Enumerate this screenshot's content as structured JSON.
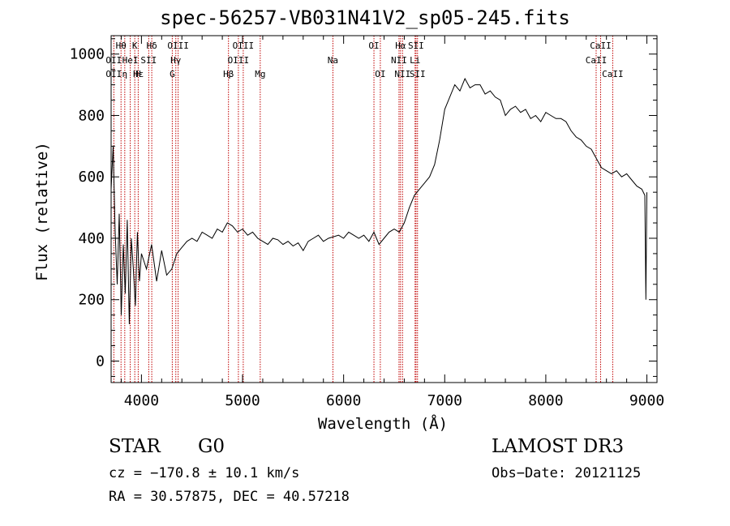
{
  "chart_data": {
    "type": "line",
    "title": "spec-56257-VB031N41V2_sp05-245.fits",
    "xlabel": "Wavelength (Å)",
    "ylabel": "Flux (relative)",
    "xlim": [
      3700,
      9100
    ],
    "ylim": [
      -70,
      1060
    ],
    "xticks": [
      4000,
      5000,
      6000,
      7000,
      8000,
      9000
    ],
    "yticks": [
      0,
      200,
      400,
      600,
      800,
      1000
    ],
    "grid": false,
    "series": [
      {
        "x": [
          3700,
          3720,
          3740,
          3760,
          3780,
          3800,
          3820,
          3840,
          3860,
          3880,
          3900,
          3920,
          3940,
          3960,
          3980,
          4000,
          4050,
          4100,
          4150,
          4200,
          4250,
          4300,
          4350,
          4400,
          4450,
          4500,
          4550,
          4600,
          4650,
          4700,
          4750,
          4800,
          4850,
          4900,
          4950,
          5000,
          5050,
          5100,
          5150,
          5200,
          5250,
          5300,
          5350,
          5400,
          5450,
          5500,
          5550,
          5600,
          5650,
          5700,
          5750,
          5800,
          5850,
          5900,
          5950,
          6000,
          6050,
          6100,
          6150,
          6200,
          6250,
          6300,
          6350,
          6400,
          6450,
          6500,
          6550,
          6600,
          6650,
          6700,
          6750,
          6800,
          6850,
          6900,
          6950,
          7000,
          7050,
          7100,
          7150,
          7200,
          7250,
          7300,
          7350,
          7400,
          7450,
          7500,
          7550,
          7600,
          7650,
          7700,
          7750,
          7800,
          7850,
          7900,
          7950,
          8000,
          8050,
          8100,
          8150,
          8200,
          8250,
          8300,
          8350,
          8400,
          8450,
          8500,
          8550,
          8600,
          8650,
          8700,
          8750,
          8800,
          8850,
          8900,
          8950,
          8980,
          8990,
          9000
        ],
        "y": [
          560,
          700,
          420,
          250,
          480,
          150,
          380,
          220,
          460,
          120,
          400,
          300,
          180,
          420,
          260,
          350,
          300,
          380,
          260,
          360,
          280,
          300,
          350,
          370,
          390,
          400,
          390,
          420,
          410,
          400,
          430,
          420,
          450,
          440,
          420,
          430,
          410,
          420,
          400,
          390,
          380,
          400,
          395,
          380,
          390,
          375,
          385,
          360,
          390,
          400,
          410,
          390,
          400,
          405,
          410,
          400,
          420,
          410,
          400,
          410,
          390,
          420,
          380,
          400,
          420,
          430,
          420,
          450,
          500,
          540,
          560,
          580,
          600,
          640,
          720,
          820,
          860,
          900,
          880,
          920,
          890,
          900,
          900,
          870,
          880,
          860,
          850,
          800,
          820,
          830,
          810,
          820,
          790,
          800,
          780,
          810,
          800,
          790,
          790,
          780,
          750,
          730,
          720,
          700,
          690,
          660,
          630,
          620,
          610,
          620,
          600,
          610,
          590,
          570,
          560,
          540,
          200,
          550
        ]
      }
    ],
    "lines": [
      {
        "label": "Hθ",
        "x": 3798,
        "row": 1
      },
      {
        "label": "OII",
        "x": 3727,
        "row": 2
      },
      {
        "label": "OII",
        "x": 3727,
        "row": 3
      },
      {
        "label": "K",
        "x": 3934,
        "row": 1
      },
      {
        "label": "Hδ",
        "x": 4102,
        "row": 1
      },
      {
        "label": "HeI",
        "x": 3889,
        "row": 2
      },
      {
        "label": "SII",
        "x": 4072,
        "row": 2
      },
      {
        "label": "Hε",
        "x": 3970,
        "row": 3
      },
      {
        "label": "η",
        "x": 3835,
        "row": 3
      },
      {
        "label": "H",
        "x": 3968,
        "row": 3
      },
      {
        "label": "OIII",
        "x": 4363,
        "row": 1
      },
      {
        "label": "Hγ",
        "x": 4340,
        "row": 2
      },
      {
        "label": "G",
        "x": 4305,
        "row": 3
      },
      {
        "label": "OIII",
        "x": 5007,
        "row": 1
      },
      {
        "label": "OIII",
        "x": 4959,
        "row": 2
      },
      {
        "label": "Hβ",
        "x": 4861,
        "row": 3
      },
      {
        "label": "Mg",
        "x": 5175,
        "row": 3
      },
      {
        "label": "Na",
        "x": 5894,
        "row": 2
      },
      {
        "label": "OI",
        "x": 6300,
        "row": 1
      },
      {
        "label": "OI",
        "x": 6363,
        "row": 3
      },
      {
        "label": "Hα",
        "x": 6563,
        "row": 1
      },
      {
        "label": "SII",
        "x": 6716,
        "row": 1
      },
      {
        "label": "NII",
        "x": 6548,
        "row": 2
      },
      {
        "label": "Li",
        "x": 6707,
        "row": 2
      },
      {
        "label": "NII",
        "x": 6583,
        "row": 3
      },
      {
        "label": "SII",
        "x": 6731,
        "row": 3
      },
      {
        "label": "CaII",
        "x": 8542,
        "row": 1
      },
      {
        "label": "CaII",
        "x": 8498,
        "row": 2
      },
      {
        "label": "CaII",
        "x": 8662,
        "row": 3
      }
    ],
    "line_positions": [
      3727,
      3798,
      3835,
      3889,
      3934,
      3968,
      4072,
      4102,
      4305,
      4340,
      4363,
      4861,
      4959,
      5007,
      5175,
      5894,
      6300,
      6363,
      6548,
      6563,
      6583,
      6707,
      6716,
      6731,
      8498,
      8542,
      8662
    ]
  },
  "info": {
    "object_class": "STAR",
    "subclass": "G0",
    "survey": "LAMOST DR3",
    "cz": "cz = −170.8 ± 10.1 km/s",
    "obs_date": "Obs−Date: 20121125",
    "radec": "RA =  30.57875, DEC =  40.57218"
  },
  "colors": {
    "line_marker": "#c00000",
    "spectrum": "#000000",
    "axes": "#000000"
  }
}
